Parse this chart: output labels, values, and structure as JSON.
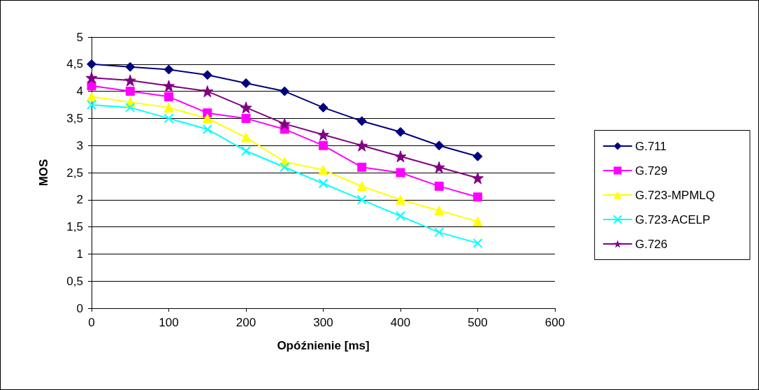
{
  "chart_data": {
    "type": "line",
    "xlabel": "Opóźnienie [ms]",
    "ylabel": "MOS",
    "x": [
      0,
      50,
      100,
      150,
      200,
      250,
      300,
      350,
      400,
      450,
      500
    ],
    "xlim": [
      0,
      600
    ],
    "xticks": [
      0,
      100,
      200,
      300,
      400,
      500,
      600
    ],
    "ylim": [
      0,
      5
    ],
    "yticks": [
      0,
      {
        "value": 0.5,
        "label": "0,5"
      },
      1,
      {
        "value": 1.5,
        "label": "1,5"
      },
      2,
      {
        "value": 2.5,
        "label": "2,5"
      },
      3,
      {
        "value": 3.5,
        "label": "3,5"
      },
      4,
      {
        "value": 4.5,
        "label": "4,5"
      },
      5
    ],
    "grid": "y",
    "legend": "right",
    "line_style": "solid",
    "series": [
      {
        "name": "G.711",
        "color": "#000080",
        "marker": "diamond",
        "values": [
          4.5,
          4.45,
          4.4,
          4.3,
          4.15,
          4.0,
          3.7,
          3.45,
          3.25,
          3.0,
          2.8
        ]
      },
      {
        "name": "G.729",
        "color": "#ff00ff",
        "marker": "square",
        "values": [
          4.1,
          4.0,
          3.9,
          3.6,
          3.5,
          3.3,
          3.0,
          2.6,
          2.5,
          2.25,
          2.05
        ]
      },
      {
        "name": "G.723-MPMLQ",
        "color": "#ffff00",
        "marker": "triangle",
        "values": [
          3.9,
          3.8,
          3.7,
          3.5,
          3.15,
          2.7,
          2.55,
          2.25,
          2.0,
          1.8,
          1.6
        ]
      },
      {
        "name": "G.723-ACELP",
        "color": "#00ffff",
        "marker": "cross",
        "values": [
          3.75,
          3.7,
          3.5,
          3.3,
          2.9,
          2.6,
          2.3,
          2.0,
          1.7,
          1.4,
          1.2
        ]
      },
      {
        "name": "G.726",
        "color": "#800080",
        "marker": "star",
        "values": [
          4.25,
          4.2,
          4.1,
          4.0,
          3.7,
          3.4,
          3.2,
          3.0,
          2.8,
          2.6,
          2.4
        ]
      }
    ]
  }
}
